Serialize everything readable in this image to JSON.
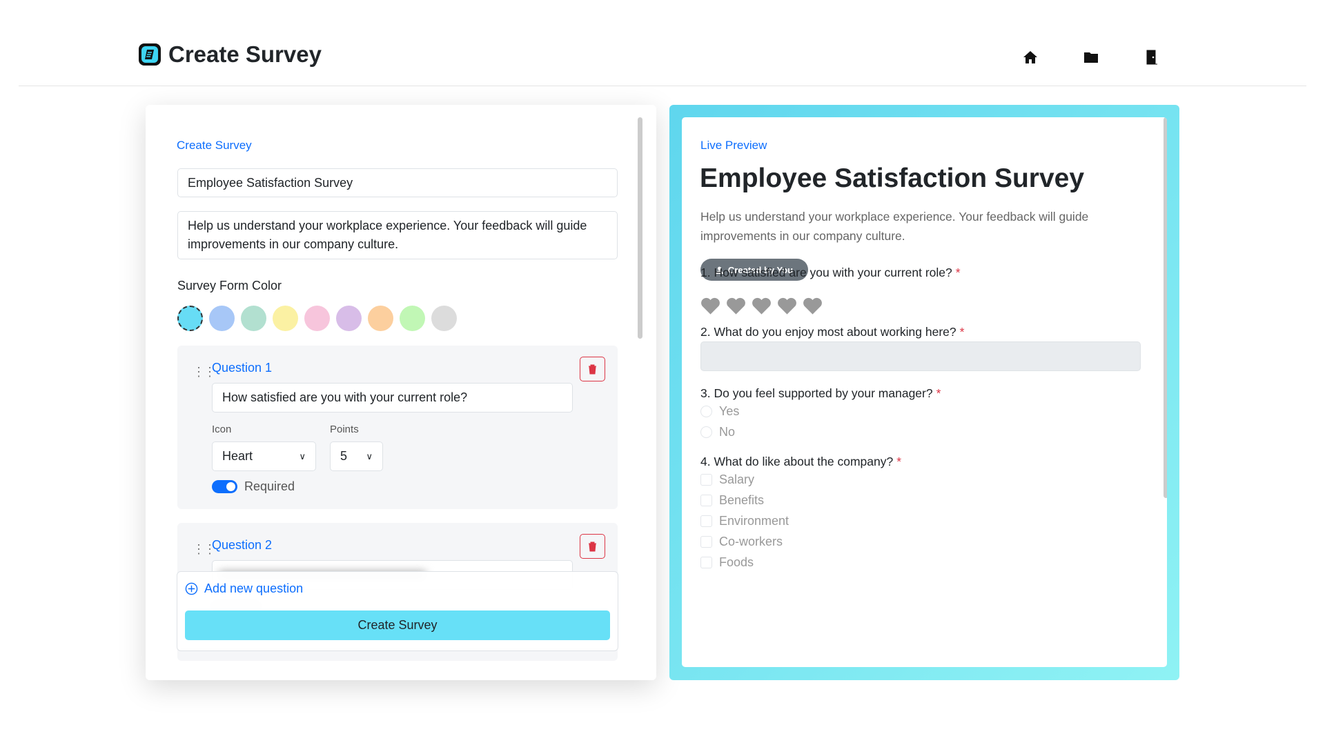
{
  "header": {
    "title": "Create Survey"
  },
  "editor": {
    "label": "Create Survey",
    "survey_title": "Employee Satisfaction Survey",
    "description": "Help us understand your workplace experience. Your feedback will guide improvements in our company culture.",
    "color_label": "Survey Form Color",
    "colors": [
      "#67dcf5",
      "#a7c7f7",
      "#b2e0d0",
      "#fbf1a3",
      "#f7c5dc",
      "#d8bde8",
      "#fccf9e",
      "#c1f7b5",
      "#dcdcdc"
    ],
    "questions": [
      {
        "label": "Question 1",
        "text": "How satisfied are you with your current role?",
        "icon_label": "Icon",
        "icon": "Heart",
        "points_label": "Points",
        "points": 5,
        "required_label": "Required"
      },
      {
        "label": "Question 2"
      }
    ],
    "add_question": "Add new question",
    "submit": "Create Survey"
  },
  "preview": {
    "label": "Live Preview",
    "title": "Employee Satisfaction Survey",
    "description": "Help us understand your workplace experience. Your feedback will guide improvements in our company culture.",
    "badge": "Created by You",
    "questions": [
      {
        "text": "1. How satisfied are you with your current role?",
        "required": "*"
      },
      {
        "text": "2. What do you enjoy most about working here?",
        "required": "*"
      },
      {
        "text": "3. Do you feel supported by your manager?",
        "required": "*",
        "options": [
          "Yes",
          "No"
        ]
      },
      {
        "text": "4. What do like about the company?",
        "required": "*",
        "options": [
          "Salary",
          "Benefits",
          "Environment",
          "Co-workers",
          "Foods"
        ]
      }
    ]
  }
}
